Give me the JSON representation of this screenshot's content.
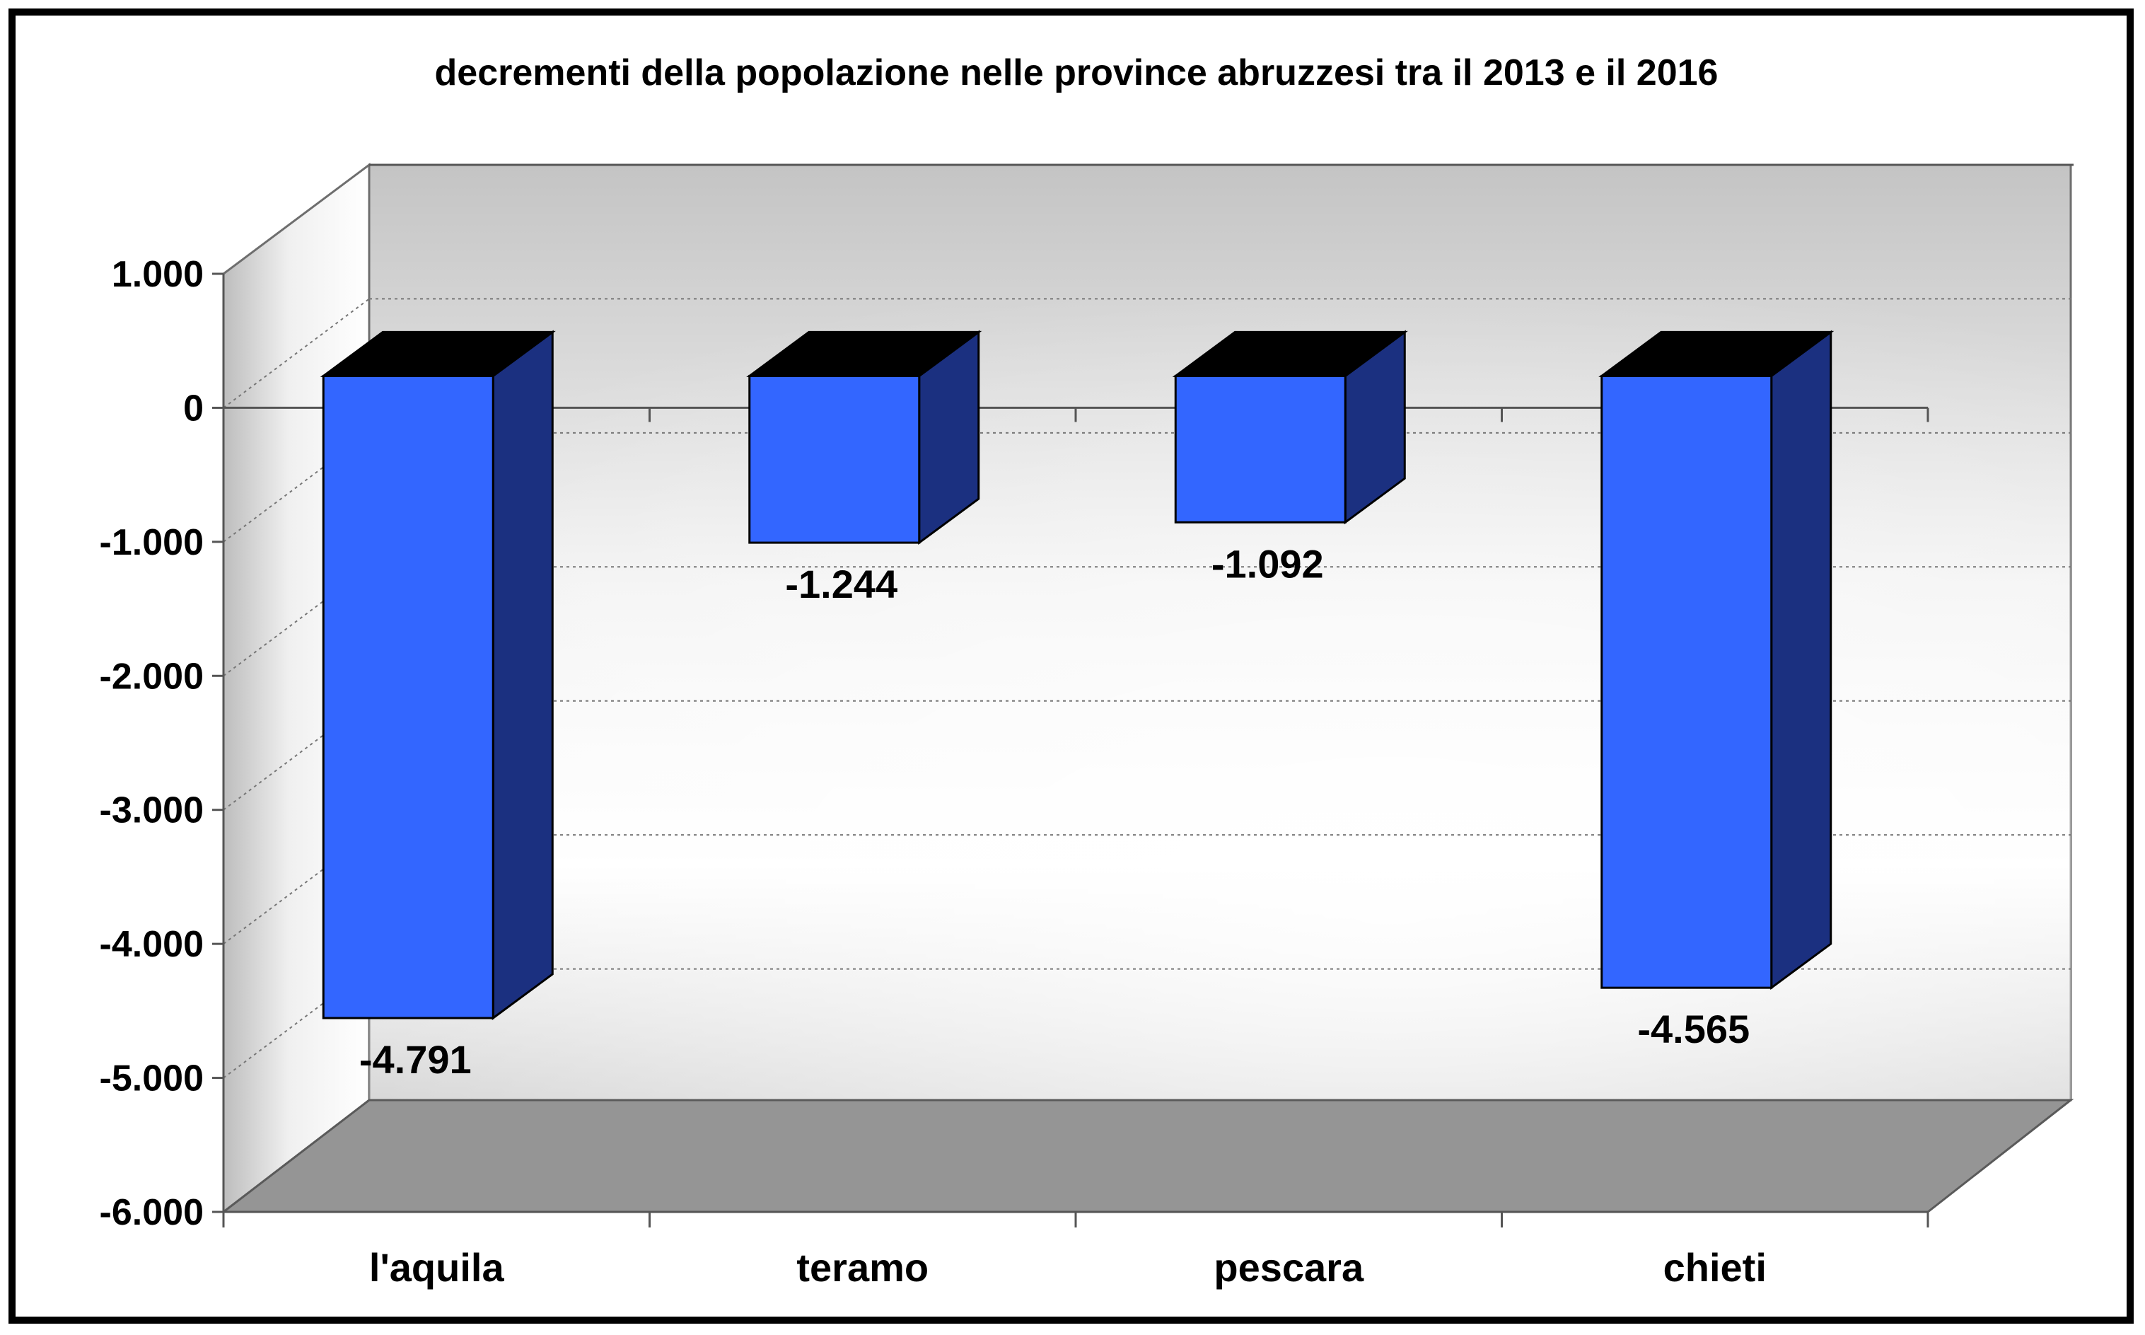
{
  "chart_data": {
    "type": "bar",
    "title": "decrementi della popolazione nelle province abruzzesi tra il 2013 e il 2016",
    "categories": [
      "l'aquila",
      "teramo",
      "pescara",
      "chieti"
    ],
    "values": [
      -4791,
      -1244,
      -1092,
      -4565
    ],
    "value_labels": [
      "-4.791",
      "-1.244",
      "-1.092",
      "-4.565"
    ],
    "ylim": [
      -6000,
      1000
    ],
    "yticks": [
      1000,
      0,
      -1000,
      -2000,
      -3000,
      -4000,
      -5000,
      -6000
    ],
    "ytick_labels": [
      "1.000",
      "0",
      "-1.000",
      "-2.000",
      "-3.000",
      "-4.000",
      "-5.000",
      "-6.000"
    ],
    "xlabel": "",
    "ylabel": "",
    "grid": true,
    "style": "3d",
    "colors": {
      "bar_front": "#3366ff",
      "bar_side": "#1b3080",
      "bar_top": "#000000",
      "floor": "#959595",
      "wall_light": "#ffffff",
      "wall_dark": "#c4c4c4"
    }
  }
}
